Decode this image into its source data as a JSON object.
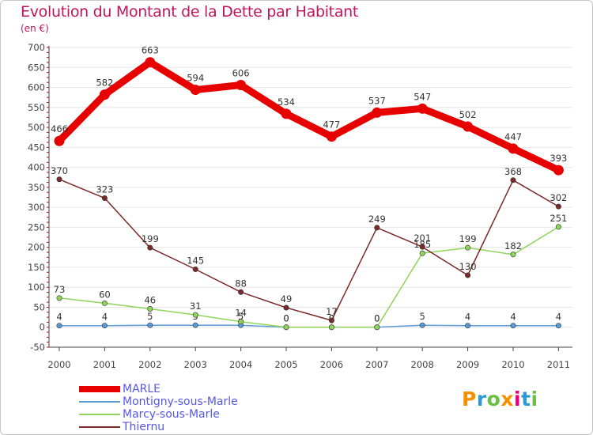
{
  "title": "Evolution du Montant de la Dette par Habitant",
  "subtitle": "(en €)",
  "logo": {
    "text": "Proxiti",
    "colors": [
      "#f39200",
      "#2b9ad6",
      "#6abf45",
      "#f39200",
      "#e5007d",
      "#2b9ad6",
      "#6abf45"
    ]
  },
  "colors": {
    "title": "#c0145c",
    "axis": "#444444",
    "grid": "#e6e6e6",
    "tick_red": "#cc0000",
    "label": "#333333"
  },
  "chart_data": {
    "type": "line",
    "categories": [
      "2000",
      "2001",
      "2002",
      "2003",
      "2004",
      "2005",
      "2006",
      "2007",
      "2008",
      "2009",
      "2010",
      "2011"
    ],
    "ylim": [
      -50,
      700
    ],
    "yticks": [
      -50,
      0,
      50,
      100,
      150,
      200,
      250,
      300,
      350,
      400,
      450,
      500,
      550,
      600,
      650,
      700
    ],
    "grid": true,
    "legend_position": "bottom-left",
    "series": [
      {
        "name": "MARLE",
        "color": "#e60000",
        "values": [
          466,
          582,
          663,
          594,
          606,
          534,
          477,
          537,
          547,
          502,
          447,
          393
        ]
      },
      {
        "name": "Montigny-sous-Marle",
        "color": "#5b9bd5",
        "values": [
          4,
          4,
          5,
          5,
          5,
          0,
          0,
          0,
          5,
          4,
          4,
          4
        ]
      },
      {
        "name": "Marcy-sous-Marle",
        "color": "#8fd45b",
        "values": [
          73,
          60,
          46,
          31,
          14,
          0,
          0,
          0,
          185,
          199,
          182,
          251
        ]
      },
      {
        "name": "Thiernu",
        "color": "#7a2a2a",
        "values": [
          370,
          323,
          199,
          145,
          88,
          49,
          17,
          249,
          201,
          130,
          368,
          302
        ]
      }
    ]
  }
}
